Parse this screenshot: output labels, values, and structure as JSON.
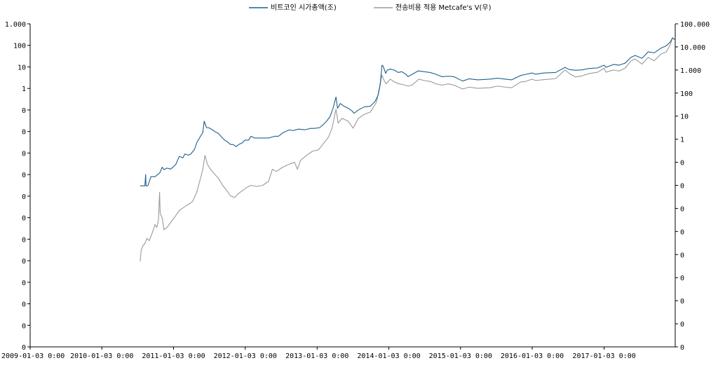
{
  "chart_data": {
    "type": "line",
    "title": "",
    "xlabel": "",
    "ylabel": "",
    "ylabel_right": "",
    "grid": false,
    "legend_position": "top-center",
    "x_ticks": [
      "2009-01-03 0:00",
      "2010-01-03 0:00",
      "2011-01-03 0:00",
      "2012-01-03 0:00",
      "2013-01-03 0:00",
      "2014-01-03 0:00",
      "2015-01-03 0:00",
      "2016-01-03 0:00",
      "2017-01-03 0:00"
    ],
    "xlim": [
      "2009-01-03",
      "2017-12-31"
    ],
    "y_left": {
      "scale": "log",
      "ylim": [
        1e-12,
        1000
      ],
      "tick_values": [
        1e-12,
        1e-11,
        1e-10,
        1e-09,
        1e-08,
        1e-07,
        1e-06,
        1e-05,
        0.0001,
        0.001,
        0.01,
        0.1,
        1,
        10,
        100,
        1000
      ],
      "tick_labels": [
        "0",
        "0",
        "0",
        "0",
        "0",
        "0",
        "0",
        "0",
        "0",
        "0",
        "0",
        "0",
        "1",
        "10",
        "100",
        "1.000"
      ]
    },
    "y_right": {
      "scale": "log",
      "ylim": [
        1e-09,
        100000
      ],
      "tick_values": [
        1e-09,
        1e-08,
        1e-07,
        1e-06,
        1e-05,
        0.0001,
        0.001,
        0.01,
        0.1,
        1,
        10,
        100,
        1000,
        10000,
        100000
      ],
      "tick_labels": [
        "0",
        "0",
        "0",
        "0",
        "0",
        "0",
        "0",
        "0",
        "0",
        "1",
        "10",
        "100",
        "1.000",
        "10.000",
        "100.000"
      ]
    },
    "series": [
      {
        "name": "비트코인 시가총액(조)",
        "axis": "left",
        "color": "#1f5f8b",
        "points": [
          [
            "2010-07-17",
            3e-05
          ],
          [
            "2010-08-10",
            3e-05
          ],
          [
            "2010-08-14",
            0.0001
          ],
          [
            "2010-08-16",
            3e-05
          ],
          [
            "2010-08-25",
            3e-05
          ],
          [
            "2010-09-10",
            8e-05
          ],
          [
            "2010-10-01",
            8e-05
          ],
          [
            "2010-10-25",
            0.00012
          ],
          [
            "2010-11-06",
            0.00022
          ],
          [
            "2010-11-15",
            0.00017
          ],
          [
            "2010-12-01",
            0.0002
          ],
          [
            "2010-12-20",
            0.00018
          ],
          [
            "2011-01-15",
            0.0003
          ],
          [
            "2011-02-01",
            0.0007
          ],
          [
            "2011-02-20",
            0.0006
          ],
          [
            "2011-03-01",
            0.0009
          ],
          [
            "2011-03-20",
            0.0008
          ],
          [
            "2011-04-01",
            0.0009
          ],
          [
            "2011-04-20",
            0.0015
          ],
          [
            "2011-05-01",
            0.003
          ],
          [
            "2011-05-20",
            0.006
          ],
          [
            "2011-06-01",
            0.009
          ],
          [
            "2011-06-08",
            0.03
          ],
          [
            "2011-06-20",
            0.015
          ],
          [
            "2011-07-01",
            0.015
          ],
          [
            "2011-07-20",
            0.012
          ],
          [
            "2011-08-01",
            0.01
          ],
          [
            "2011-08-20",
            0.008
          ],
          [
            "2011-09-01",
            0.006
          ],
          [
            "2011-09-20",
            0.004
          ],
          [
            "2011-10-01",
            0.0035
          ],
          [
            "2011-10-20",
            0.0025
          ],
          [
            "2011-11-01",
            0.0025
          ],
          [
            "2011-11-18",
            0.002
          ],
          [
            "2011-12-01",
            0.0025
          ],
          [
            "2011-12-20",
            0.003
          ],
          [
            "2012-01-01",
            0.004
          ],
          [
            "2012-01-20",
            0.004
          ],
          [
            "2012-02-01",
            0.006
          ],
          [
            "2012-02-20",
            0.005
          ],
          [
            "2012-03-01",
            0.005
          ],
          [
            "2012-04-01",
            0.005
          ],
          [
            "2012-05-01",
            0.005
          ],
          [
            "2012-06-01",
            0.006
          ],
          [
            "2012-06-20",
            0.006
          ],
          [
            "2012-07-15",
            0.009
          ],
          [
            "2012-08-15",
            0.012
          ],
          [
            "2012-09-01",
            0.011
          ],
          [
            "2012-10-01",
            0.013
          ],
          [
            "2012-11-01",
            0.012
          ],
          [
            "2012-12-01",
            0.014
          ],
          [
            "2012-12-20",
            0.014
          ],
          [
            "2013-01-15",
            0.015
          ],
          [
            "2013-02-01",
            0.02
          ],
          [
            "2013-02-20",
            0.03
          ],
          [
            "2013-03-10",
            0.05
          ],
          [
            "2013-03-25",
            0.12
          ],
          [
            "2013-04-09",
            0.4
          ],
          [
            "2013-04-17",
            0.12
          ],
          [
            "2013-05-01",
            0.2
          ],
          [
            "2013-05-20",
            0.15
          ],
          [
            "2013-06-10",
            0.12
          ],
          [
            "2013-06-30",
            0.09
          ],
          [
            "2013-07-10",
            0.07
          ],
          [
            "2013-08-01",
            0.1
          ],
          [
            "2013-09-01",
            0.14
          ],
          [
            "2013-10-01",
            0.15
          ],
          [
            "2013-10-25",
            0.25
          ],
          [
            "2013-11-10",
            0.5
          ],
          [
            "2013-11-20",
            1.5
          ],
          [
            "2013-11-29",
            12
          ],
          [
            "2013-12-05",
            11
          ],
          [
            "2013-12-10",
            8
          ],
          [
            "2013-12-18",
            5
          ],
          [
            "2013-12-25",
            7
          ],
          [
            "2014-01-10",
            8
          ],
          [
            "2014-02-01",
            7
          ],
          [
            "2014-02-20",
            5.5
          ],
          [
            "2014-03-10",
            6
          ],
          [
            "2014-04-01",
            4.5
          ],
          [
            "2014-04-10",
            3.5
          ],
          [
            "2014-05-01",
            4.5
          ],
          [
            "2014-06-01",
            6.5
          ],
          [
            "2014-07-01",
            6
          ],
          [
            "2014-08-01",
            5.5
          ],
          [
            "2014-09-01",
            4.5
          ],
          [
            "2014-10-01",
            3.5
          ],
          [
            "2014-11-01",
            3.7
          ],
          [
            "2014-12-01",
            3.5
          ],
          [
            "2015-01-14",
            2.2
          ],
          [
            "2015-02-15",
            2.8
          ],
          [
            "2015-04-01",
            2.5
          ],
          [
            "2015-06-01",
            2.7
          ],
          [
            "2015-07-10",
            3
          ],
          [
            "2015-08-20",
            2.7
          ],
          [
            "2015-09-20",
            2.5
          ],
          [
            "2015-11-05",
            4
          ],
          [
            "2015-12-01",
            4.5
          ],
          [
            "2016-01-01",
            5.2
          ],
          [
            "2016-01-20",
            4.6
          ],
          [
            "2016-03-01",
            5.2
          ],
          [
            "2016-05-01",
            5.5
          ],
          [
            "2016-06-18",
            9.5
          ],
          [
            "2016-07-10",
            7.5
          ],
          [
            "2016-08-10",
            7
          ],
          [
            "2016-09-10",
            7.2
          ],
          [
            "2016-10-20",
            8.5
          ],
          [
            "2016-12-01",
            9
          ],
          [
            "2017-01-03",
            12
          ],
          [
            "2017-01-12",
            9.5
          ],
          [
            "2017-02-20",
            13
          ],
          [
            "2017-03-20",
            12
          ],
          [
            "2017-04-20",
            15
          ],
          [
            "2017-05-20",
            28
          ],
          [
            "2017-06-10",
            34
          ],
          [
            "2017-07-15",
            25
          ],
          [
            "2017-08-15",
            50
          ],
          [
            "2017-09-15",
            45
          ],
          [
            "2017-10-20",
            75
          ],
          [
            "2017-11-15",
            95
          ],
          [
            "2017-12-05",
            140
          ],
          [
            "2017-12-17",
            220
          ],
          [
            "2017-12-31",
            180
          ]
        ]
      },
      {
        "name": "전송비용 적용 Metcafe's V(우)",
        "axis": "right",
        "color": "#9a9a9a",
        "points": [
          [
            "2010-07-17",
            5e-06
          ],
          [
            "2010-07-22",
            1.5e-05
          ],
          [
            "2010-08-01",
            2.5e-05
          ],
          [
            "2010-08-10",
            3e-05
          ],
          [
            "2010-08-20",
            5e-05
          ],
          [
            "2010-09-01",
            4e-05
          ],
          [
            "2010-09-15",
            8e-05
          ],
          [
            "2010-10-01",
            0.0002
          ],
          [
            "2010-10-10",
            0.00015
          ],
          [
            "2010-10-18",
            0.0003
          ],
          [
            "2010-10-24",
            0.005
          ],
          [
            "2010-10-27",
            0.0006
          ],
          [
            "2010-11-06",
            0.0004
          ],
          [
            "2010-11-15",
            0.00012
          ],
          [
            "2010-12-01",
            0.00015
          ],
          [
            "2010-12-20",
            0.00025
          ],
          [
            "2011-01-15",
            0.0005
          ],
          [
            "2011-02-01",
            0.0008
          ],
          [
            "2011-03-01",
            0.0012
          ],
          [
            "2011-03-20",
            0.0015
          ],
          [
            "2011-04-10",
            0.002
          ],
          [
            "2011-05-01",
            0.005
          ],
          [
            "2011-05-20",
            0.02
          ],
          [
            "2011-06-01",
            0.05
          ],
          [
            "2011-06-12",
            0.2
          ],
          [
            "2011-06-25",
            0.08
          ],
          [
            "2011-07-10",
            0.05
          ],
          [
            "2011-08-01",
            0.03
          ],
          [
            "2011-08-20",
            0.02
          ],
          [
            "2011-09-10",
            0.01
          ],
          [
            "2011-10-01",
            0.006
          ],
          [
            "2011-10-20",
            0.0035
          ],
          [
            "2011-11-10",
            0.003
          ],
          [
            "2011-12-01",
            0.0045
          ],
          [
            "2011-12-20",
            0.006
          ],
          [
            "2012-01-10",
            0.008
          ],
          [
            "2012-02-01",
            0.01
          ],
          [
            "2012-03-01",
            0.009
          ],
          [
            "2012-04-01",
            0.01
          ],
          [
            "2012-05-01",
            0.015
          ],
          [
            "2012-05-20",
            0.05
          ],
          [
            "2012-06-10",
            0.04
          ],
          [
            "2012-07-10",
            0.06
          ],
          [
            "2012-08-10",
            0.08
          ],
          [
            "2012-09-10",
            0.1
          ],
          [
            "2012-09-25",
            0.05
          ],
          [
            "2012-10-10",
            0.12
          ],
          [
            "2012-11-10",
            0.2
          ],
          [
            "2012-12-10",
            0.3
          ],
          [
            "2013-01-10",
            0.35
          ],
          [
            "2013-02-01",
            0.6
          ],
          [
            "2013-03-01",
            1.2
          ],
          [
            "2013-03-20",
            3
          ],
          [
            "2013-04-09",
            20
          ],
          [
            "2013-04-20",
            5
          ],
          [
            "2013-05-10",
            8
          ],
          [
            "2013-06-10",
            6
          ],
          [
            "2013-07-05",
            3
          ],
          [
            "2013-08-01",
            8
          ],
          [
            "2013-09-01",
            12
          ],
          [
            "2013-10-01",
            15
          ],
          [
            "2013-11-01",
            40
          ],
          [
            "2013-11-29",
            600
          ],
          [
            "2013-12-10",
            350
          ],
          [
            "2013-12-20",
            250
          ],
          [
            "2014-01-10",
            400
          ],
          [
            "2014-02-01",
            300
          ],
          [
            "2014-02-25",
            250
          ],
          [
            "2014-03-20",
            230
          ],
          [
            "2014-04-10",
            200
          ],
          [
            "2014-05-01",
            220
          ],
          [
            "2014-06-05",
            400
          ],
          [
            "2014-07-01",
            350
          ],
          [
            "2014-08-01",
            320
          ],
          [
            "2014-09-01",
            250
          ],
          [
            "2014-10-01",
            220
          ],
          [
            "2014-11-01",
            250
          ],
          [
            "2014-12-01",
            220
          ],
          [
            "2015-01-14",
            150
          ],
          [
            "2015-02-15",
            180
          ],
          [
            "2015-04-01",
            160
          ],
          [
            "2015-06-01",
            170
          ],
          [
            "2015-07-10",
            200
          ],
          [
            "2015-08-20",
            180
          ],
          [
            "2015-09-20",
            170
          ],
          [
            "2015-11-05",
            300
          ],
          [
            "2015-12-01",
            320
          ],
          [
            "2016-01-01",
            400
          ],
          [
            "2016-01-20",
            350
          ],
          [
            "2016-03-01",
            380
          ],
          [
            "2016-05-01",
            420
          ],
          [
            "2016-06-18",
            1000
          ],
          [
            "2016-07-10",
            700
          ],
          [
            "2016-08-10",
            500
          ],
          [
            "2016-09-10",
            550
          ],
          [
            "2016-10-20",
            700
          ],
          [
            "2016-12-01",
            800
          ],
          [
            "2017-01-03",
            1200
          ],
          [
            "2017-01-12",
            800
          ],
          [
            "2017-02-20",
            1000
          ],
          [
            "2017-03-20",
            900
          ],
          [
            "2017-04-20",
            1200
          ],
          [
            "2017-05-20",
            2500
          ],
          [
            "2017-06-10",
            3000
          ],
          [
            "2017-07-15",
            1800
          ],
          [
            "2017-08-15",
            3500
          ],
          [
            "2017-09-15",
            2500
          ],
          [
            "2017-10-20",
            5000
          ],
          [
            "2017-11-15",
            6000
          ],
          [
            "2017-12-05",
            12000
          ],
          [
            "2017-12-17",
            25000
          ],
          [
            "2017-12-31",
            20000
          ]
        ]
      }
    ]
  }
}
